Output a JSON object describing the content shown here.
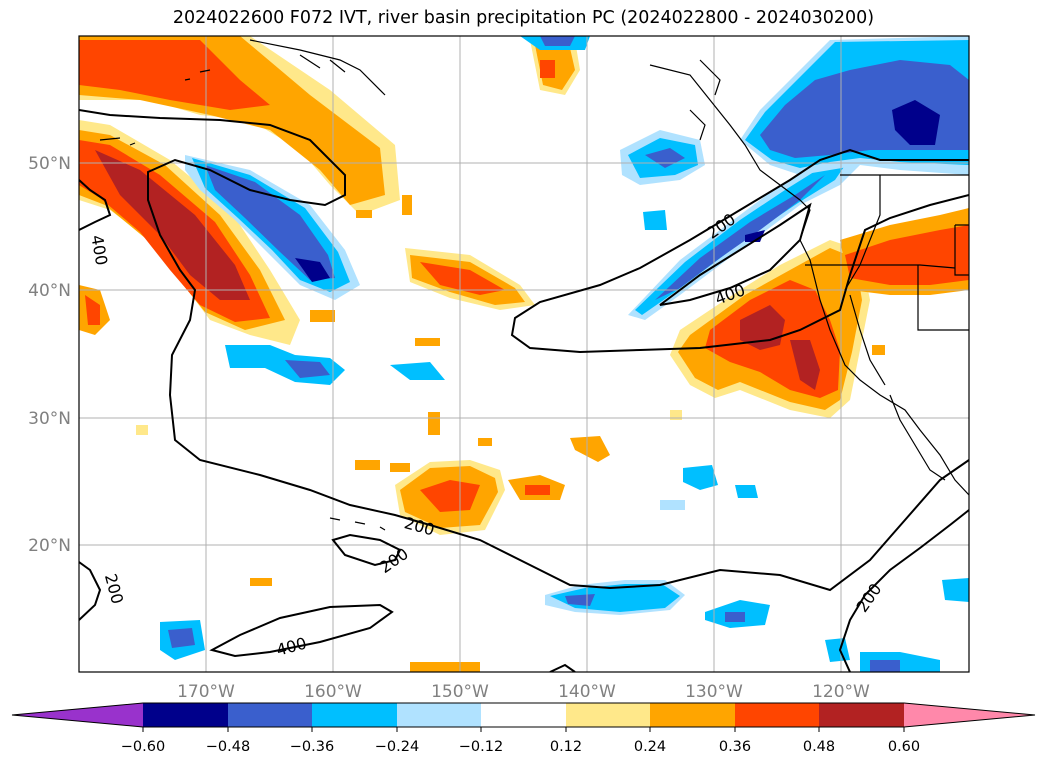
{
  "title": "2024022600 F072 IVT, river basin precipitation PC (2024022800 - 2024030200)",
  "lat_labels": [
    "50°N",
    "40°N",
    "30°N",
    "20°N"
  ],
  "lon_labels": [
    "170°W",
    "160°W",
    "150°W",
    "140°W",
    "130°W",
    "120°W"
  ],
  "contour_labels": [
    "400",
    "200",
    "400",
    "200",
    "200",
    "200",
    "400",
    "200"
  ],
  "colorbar": {
    "ticks": [
      "−0.60",
      "−0.48",
      "−0.36",
      "−0.24",
      "−0.12",
      "0.12",
      "0.24",
      "0.36",
      "0.48",
      "0.60"
    ],
    "colors": [
      "#9932cc",
      "#00008b",
      "#3a5fcd",
      "#00bfff",
      "#b0e2ff",
      "#ffffff",
      "#ffe88a",
      "#ffa500",
      "#ff4500",
      "#b22222",
      "#ff88aa"
    ]
  },
  "colors": {
    "neg_strong": "#00008b",
    "neg_mid": "#3a5fcd",
    "neg_light": "#00bfff",
    "neg_faint": "#b0e2ff",
    "pos_faint": "#ffe88a",
    "pos_light": "#ffa500",
    "pos_mid": "#ff4500",
    "pos_strong": "#b22222"
  }
}
